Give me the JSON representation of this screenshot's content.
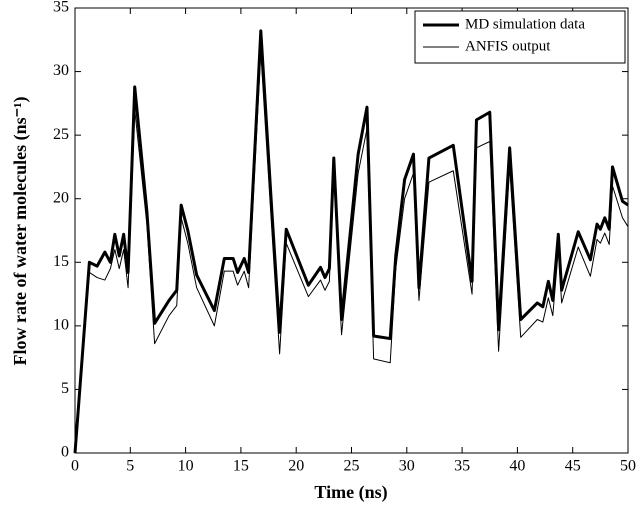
{
  "chart_data": {
    "type": "line",
    "xlabel": "Time (ns)",
    "ylabel": "Flow rate of water molecules (ns⁻¹)",
    "x": [
      0,
      1.3,
      2,
      2.7,
      3.2,
      3.6,
      4.0,
      4.4,
      4.8,
      5.4,
      6.5,
      7.2,
      8.5,
      9.2,
      9.6,
      10.2,
      11,
      12.6,
      13.5,
      14.3,
      14.7,
      15.3,
      15.7,
      16.8,
      17.8,
      18.5,
      19.1,
      21.1,
      22.2,
      22.6,
      23,
      23.4,
      24.1,
      25.6,
      26.4,
      27,
      28.5,
      29,
      29.8,
      30.6,
      31.1,
      32,
      34.2,
      35.9,
      36.3,
      37.5,
      38.3,
      39.3,
      40.3,
      41.8,
      42.3,
      42.8,
      43.2,
      43.7,
      44,
      45.5,
      46.6,
      47.2,
      47.5,
      47.9,
      48.3,
      48.6,
      49.5,
      50
    ],
    "series": [
      {
        "name": "MD simulation data",
        "color": "#000000",
        "width": 3,
        "values": [
          0,
          15,
          14.7,
          15.8,
          15,
          17.2,
          15.5,
          17.2,
          14.2,
          28.8,
          19,
          10.2,
          12,
          12.8,
          19.5,
          17.5,
          14,
          11.2,
          15.3,
          15.3,
          14.2,
          15.3,
          14.2,
          33.2,
          19,
          9.5,
          17.6,
          13.2,
          14.6,
          13.8,
          14.5,
          23.2,
          10.5,
          23.5,
          27.2,
          9.2,
          9,
          15.5,
          21.5,
          23.5,
          13,
          23.2,
          24.2,
          13.5,
          26.2,
          26.8,
          9.7,
          24,
          10.5,
          11.8,
          11.5,
          13.5,
          12,
          17.2,
          12.8,
          17.4,
          15.2,
          18,
          17.6,
          18.5,
          17.6,
          22.5,
          19.8,
          19.5
        ]
      },
      {
        "name": "ANFIS output",
        "color": "#000000",
        "width": 1,
        "values": [
          0,
          14.2,
          13.8,
          13.6,
          14.5,
          16.0,
          14.5,
          16.0,
          13.0,
          27.0,
          18.0,
          8.6,
          10.8,
          11.6,
          18.5,
          16.5,
          13.0,
          10.0,
          14.3,
          14.3,
          13.2,
          14.3,
          13.0,
          31.5,
          17.5,
          7.8,
          16.5,
          12.3,
          13.6,
          12.8,
          13.5,
          22.0,
          9.3,
          22.0,
          25.5,
          7.4,
          7.1,
          14.5,
          20.0,
          22.0,
          12.0,
          21.3,
          22.2,
          12.5,
          24.0,
          24.5,
          8.0,
          22.5,
          9.1,
          10.5,
          10.3,
          12.2,
          10.8,
          16.0,
          11.8,
          16.2,
          13.9,
          16.8,
          16.5,
          17.3,
          16.4,
          21.0,
          18.5,
          17.8
        ]
      }
    ],
    "xlim": [
      0,
      50
    ],
    "xticks": [
      0,
      5,
      10,
      15,
      20,
      25,
      30,
      35,
      40,
      45,
      50
    ],
    "ylim": [
      0,
      35
    ],
    "yticks": [
      0,
      5,
      10,
      15,
      20,
      25,
      30,
      35
    ],
    "legend": "upper right"
  }
}
